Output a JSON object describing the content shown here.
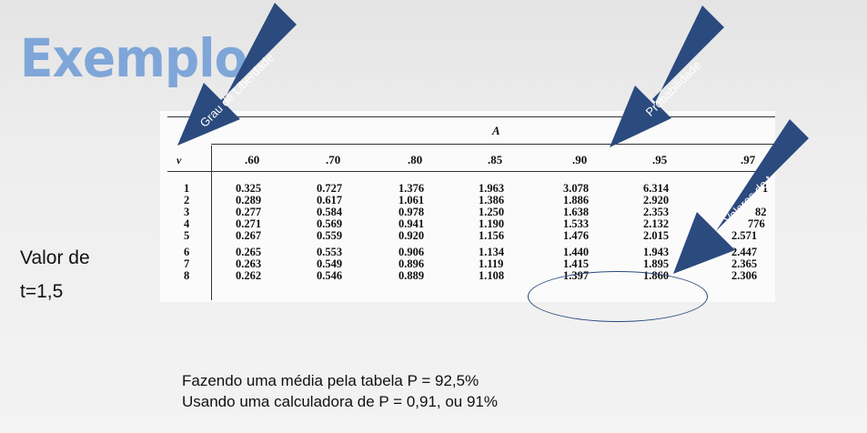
{
  "title": "Exemplo",
  "side_label": {
    "line1": "Valor de",
    "line2": "t=1,5"
  },
  "table": {
    "header_symbol": "A",
    "row_header": "ν",
    "columns": [
      ".60",
      ".70",
      ".80",
      ".85",
      ".90",
      ".95",
      ".97"
    ],
    "rows": [
      {
        "n": "1",
        "values": [
          "0.325",
          "0.727",
          "1.376",
          "1.963",
          "3.078",
          "6.314",
          "1"
        ]
      },
      {
        "n": "2",
        "values": [
          "0.289",
          "0.617",
          "1.061",
          "1.386",
          "1.886",
          "2.920",
          ""
        ]
      },
      {
        "n": "3",
        "values": [
          "0.277",
          "0.584",
          "0.978",
          "1.250",
          "1.638",
          "2.353",
          "82"
        ]
      },
      {
        "n": "4",
        "values": [
          "0.271",
          "0.569",
          "0.941",
          "1.190",
          "1.533",
          "2.132",
          "776"
        ]
      },
      {
        "n": "5",
        "values": [
          "0.267",
          "0.559",
          "0.920",
          "1.156",
          "1.476",
          "2.015",
          "2.571"
        ]
      },
      {
        "n": "6",
        "values": [
          "0.265",
          "0.553",
          "0.906",
          "1.134",
          "1.440",
          "1.943",
          "2.447"
        ]
      },
      {
        "n": "7",
        "values": [
          "0.263",
          "0.549",
          "0.896",
          "1.119",
          "1.415",
          "1.895",
          "2.365"
        ]
      },
      {
        "n": "8",
        "values": [
          "0.262",
          "0.546",
          "0.889",
          "1.108",
          "1.397",
          "1.860",
          "2.306"
        ]
      }
    ]
  },
  "arrows": {
    "liberdade": "Grau de Liberdade",
    "probabilidade": "Probabilidade",
    "valores": "Valores de t",
    "color": "#2b4a7e"
  },
  "captions": {
    "line1": "Fazendo uma média pela tabela P = 92,5%",
    "line2": "Usando uma calculadora de P =  0,91, ou 91%"
  }
}
